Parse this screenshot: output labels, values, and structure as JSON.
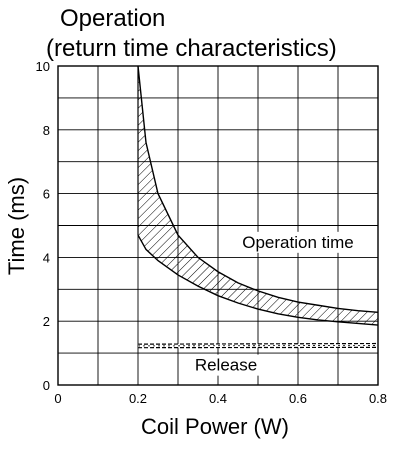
{
  "chart_data": {
    "type": "area",
    "title": "Operation\n(return time characteristics)",
    "title_lines": [
      "Operation",
      "(return time characteristics)"
    ],
    "xlabel": "Coil Power (W)",
    "ylabel": "Time (ms)",
    "xlim": [
      0,
      0.8
    ],
    "ylim": [
      0,
      10
    ],
    "x_major_ticks": [
      0,
      0.2,
      0.4,
      0.6,
      0.8
    ],
    "x_tick_labels": [
      "0",
      "0.2",
      "0.4",
      "0.6",
      "0.8"
    ],
    "x_minor_ticks": [
      0.1,
      0.3,
      0.5,
      0.7
    ],
    "y_ticks": [
      0,
      2,
      4,
      6,
      8,
      10
    ],
    "y_tick_labels": [
      "0",
      "2",
      "4",
      "6",
      "8",
      "10"
    ],
    "grid": true,
    "series": [
      {
        "name": "Operation time",
        "style": "hatched band",
        "x": [
          0.2,
          0.22,
          0.25,
          0.3,
          0.35,
          0.4,
          0.45,
          0.5,
          0.55,
          0.6,
          0.65,
          0.7,
          0.75,
          0.8
        ],
        "upper": [
          10.0,
          7.6,
          6.0,
          4.7,
          4.0,
          3.55,
          3.2,
          2.95,
          2.75,
          2.6,
          2.5,
          2.4,
          2.33,
          2.28
        ],
        "lower": [
          4.7,
          4.25,
          3.9,
          3.45,
          3.1,
          2.8,
          2.57,
          2.38,
          2.23,
          2.12,
          2.04,
          1.98,
          1.93,
          1.88
        ]
      },
      {
        "name": "Release",
        "style": "dashed band",
        "x": [
          0.2,
          0.8
        ],
        "upper": [
          1.28,
          1.3
        ],
        "lower": [
          1.17,
          1.18
        ]
      }
    ],
    "annotations": [
      {
        "text": "Operation time",
        "x": 0.6,
        "y": 4.3
      },
      {
        "text": "Release",
        "x": 0.42,
        "y": 0.45
      }
    ]
  }
}
